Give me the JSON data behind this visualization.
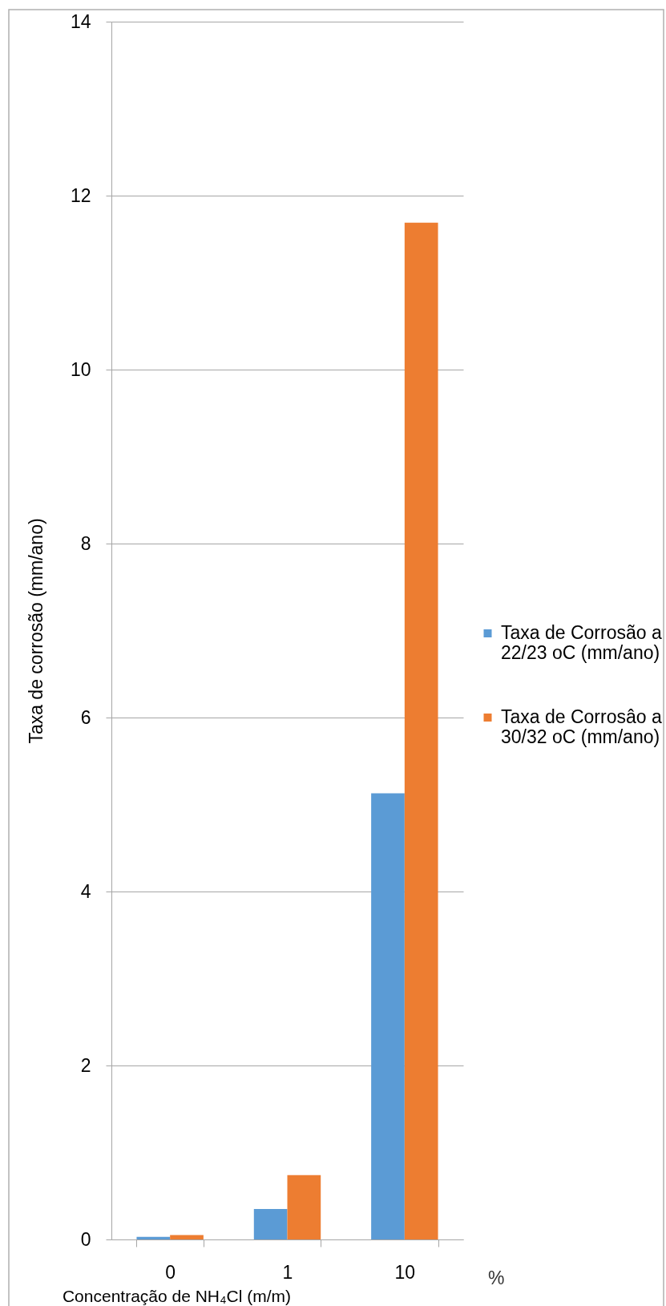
{
  "chart_data": {
    "type": "bar",
    "categories": [
      "0",
      "1",
      "10"
    ],
    "series": [
      {
        "name": "Taxa de Corrosão a 22/23 oC (mm/ano)",
        "color": "#5b9bd5",
        "values": [
          0.03,
          0.35,
          5.13
        ]
      },
      {
        "name": "Taxa de Corrosâo a 30/32 oC (mm/ano)",
        "color": "#ed7d31",
        "values": [
          0.05,
          0.74,
          11.69
        ]
      }
    ],
    "xlabel": "Concentração de NH₄Cl (m/m)",
    "ylabel": "Taxa de corrosão (mm/ano)",
    "ylim": [
      0,
      14
    ],
    "yticks": [
      0,
      2,
      4,
      6,
      8,
      10,
      12,
      14
    ],
    "grid": "y",
    "legend": "right",
    "annotations": [
      "%"
    ]
  }
}
